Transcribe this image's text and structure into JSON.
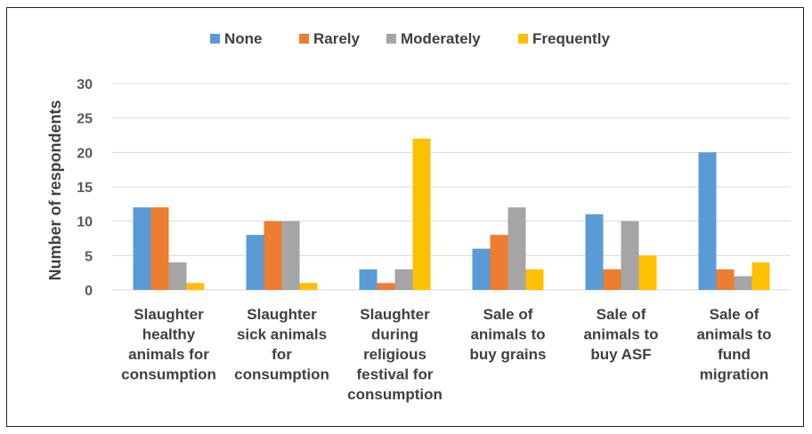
{
  "chart_data": {
    "type": "bar",
    "title": "",
    "xlabel": "",
    "ylabel": "Number of respondents",
    "ylim": [
      0,
      30
    ],
    "yticks": [
      0,
      5,
      10,
      15,
      20,
      25,
      30
    ],
    "grid": true,
    "legend_position": "top",
    "categories": [
      [
        "Slaughter",
        "healthy",
        "animals for",
        "consumption"
      ],
      [
        "Slaughter",
        "sick animals",
        "for",
        "consumption"
      ],
      [
        "Slaughter",
        "during",
        "religious",
        "festival for",
        "consumption"
      ],
      [
        "Sale of",
        "animals to",
        "buy grains"
      ],
      [
        "Sale of",
        "animals to",
        "buy ASF"
      ],
      [
        "Sale of",
        "animals to",
        "fund",
        "migration"
      ]
    ],
    "series": [
      {
        "name": "None",
        "color": "#5B9BD5",
        "values": [
          12,
          8,
          3,
          6,
          11,
          20
        ]
      },
      {
        "name": "Rarely",
        "color": "#ED7D31",
        "values": [
          12,
          10,
          1,
          8,
          3,
          3
        ]
      },
      {
        "name": "Moderately",
        "color": "#A5A5A5",
        "values": [
          4,
          10,
          3,
          12,
          10,
          2
        ]
      },
      {
        "name": "Frequently",
        "color": "#FFC000",
        "values": [
          1,
          1,
          22,
          3,
          5,
          4
        ]
      }
    ]
  }
}
